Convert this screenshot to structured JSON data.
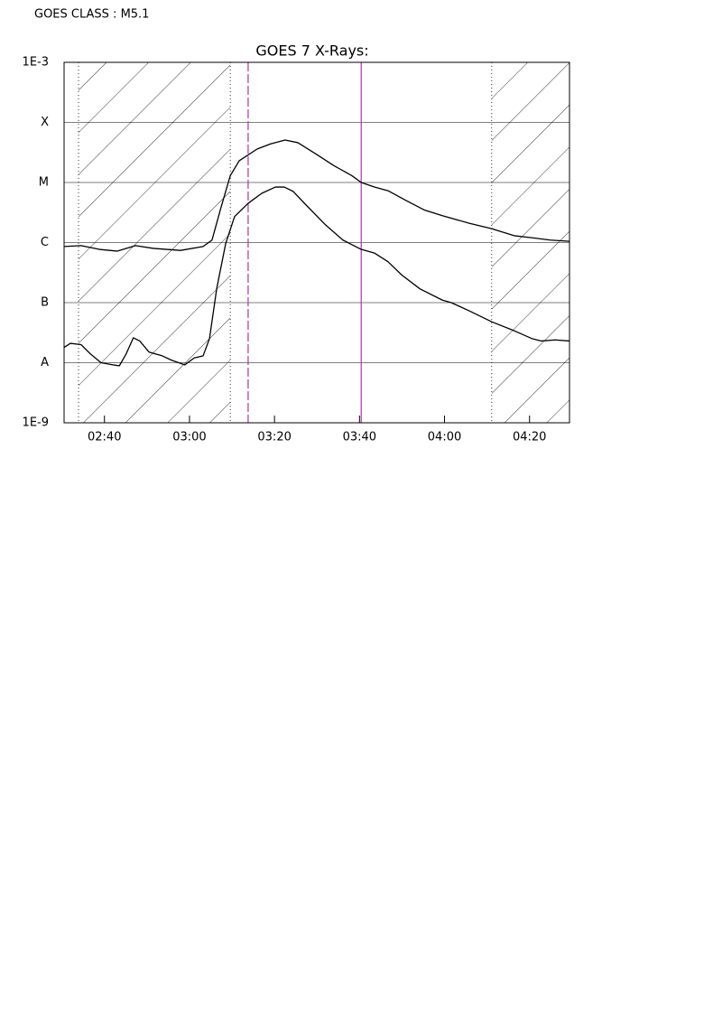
{
  "header": "GOES CLASS : M5.1",
  "chart_data": {
    "type": "line",
    "title": "GOES 7 X-Rays:",
    "xlim": [
      150.5,
      269.4
    ],
    "xticks": [
      {
        "value": 160,
        "label": "02:40"
      },
      {
        "value": 180,
        "label": "03:00"
      },
      {
        "value": 200,
        "label": "03:20"
      },
      {
        "value": 220,
        "label": "03:40"
      },
      {
        "value": 240,
        "label": "04:00"
      },
      {
        "value": 260,
        "label": "04:20"
      }
    ],
    "ylim": [
      1e-09,
      0.001
    ],
    "yscale": "log",
    "yticks": [
      {
        "value": 0.001,
        "label": "1E-3"
      },
      {
        "value": 0.0001,
        "label": "X"
      },
      {
        "value": 1e-05,
        "label": "M"
      },
      {
        "value": 1e-06,
        "label": "C"
      },
      {
        "value": 1e-07,
        "label": "B"
      },
      {
        "value": 1e-08,
        "label": "A"
      },
      {
        "value": 1e-09,
        "label": "1E-9"
      }
    ],
    "grid": true,
    "shaded_intervals": [
      [
        153.9,
        189.6
      ],
      [
        251.1,
        269.4
      ]
    ],
    "markers": [
      {
        "x": 193.8,
        "color": "#b030b0",
        "style": "dashed"
      },
      {
        "x": 220.4,
        "color": "#b030b0",
        "style": "solid"
      }
    ],
    "series": [
      {
        "color": "#000000",
        "x": [
          150.5,
          154.5,
          158.8,
          163.0,
          167.3,
          171.5,
          177.9,
          183.2,
          185.3,
          187.4,
          189.6,
          191.7,
          195.9,
          199.1,
          202.5,
          205.5,
          209.7,
          214.0,
          218.2,
          220.4,
          223.5,
          226.7,
          231.0,
          235.2,
          239.5,
          245.8,
          251.1,
          256.4,
          260.7,
          264.9,
          269.4
        ],
        "values": [
          8.6e-07,
          8.9e-07,
          7.7e-07,
          7.2e-07,
          8.9e-07,
          8e-07,
          7.4e-07,
          8.6e-07,
          1.1e-06,
          3.8e-06,
          1.3e-05,
          2.3e-05,
          3.6e-05,
          4.4e-05,
          5.1e-05,
          4.6e-05,
          3e-05,
          1.9e-05,
          1.3e-05,
          1e-05,
          8.4e-06,
          7.3e-06,
          5e-06,
          3.5e-06,
          2.8e-06,
          2.1e-06,
          1.7e-06,
          1.3e-06,
          1.2e-06,
          1.1e-06,
          1.05e-06
        ]
      },
      {
        "color": "#000000",
        "x": [
          150.5,
          152.0,
          154.5,
          156.7,
          159.2,
          162.0,
          163.5,
          165.1,
          166.8,
          168.3,
          170.5,
          173.6,
          175.8,
          178.9,
          181.1,
          183.2,
          184.7,
          186.4,
          188.5,
          190.6,
          193.8,
          197.0,
          200.2,
          202.3,
          204.4,
          207.6,
          211.9,
          216.1,
          220.4,
          223.5,
          226.7,
          229.9,
          234.2,
          239.5,
          241.6,
          245.8,
          251.1,
          256.4,
          260.7,
          262.8,
          266.0,
          269.4
        ],
        "values": [
          1.8e-08,
          2.1e-08,
          2e-08,
          1.4e-08,
          1e-08,
          9.2e-09,
          8.9e-09,
          1.4e-08,
          2.6e-08,
          2.3e-08,
          1.5e-08,
          1.3e-08,
          1.1e-08,
          9.2e-09,
          1.2e-08,
          1.3e-08,
          2.5e-08,
          1.7e-07,
          9.5e-07,
          2.7e-06,
          4.5e-06,
          6.6e-06,
          8.4e-06,
          8.4e-06,
          7.1e-06,
          4.1e-06,
          2e-06,
          1.1e-06,
          7.7e-07,
          6.7e-07,
          4.8e-07,
          2.9e-07,
          1.7e-07,
          1.1e-07,
          1e-07,
          7.3e-08,
          4.8e-08,
          3.4e-08,
          2.5e-08,
          2.3e-08,
          2.4e-08,
          2.3e-08
        ]
      }
    ]
  }
}
